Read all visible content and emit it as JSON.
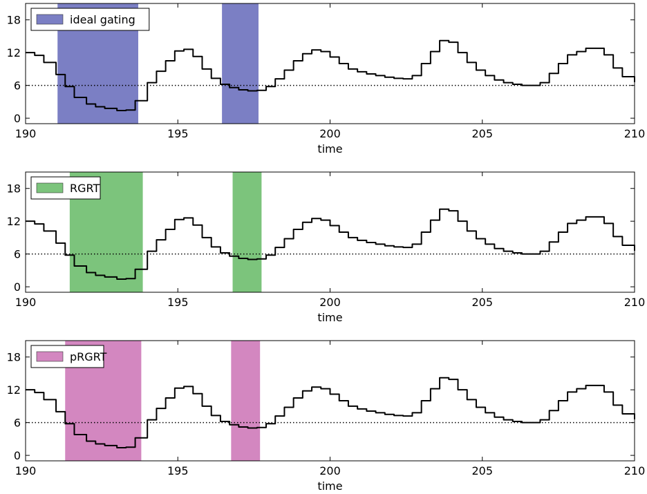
{
  "chart_data": [
    {
      "type": "line",
      "xlabel": "time",
      "xlim": [
        190,
        210
      ],
      "ylim": [
        -1,
        21
      ],
      "xticks": [
        190,
        195,
        200,
        205,
        210
      ],
      "yticks": [
        0,
        6,
        12,
        18
      ],
      "threshold": 6,
      "band_label": "ideal gating",
      "band_color": "#7b7fc4",
      "bands": [
        [
          191.05,
          193.7
        ],
        [
          196.45,
          197.65
        ]
      ],
      "x": [
        190,
        190.3,
        190.6,
        191,
        191.3,
        191.6,
        192,
        192.3,
        192.6,
        193,
        193.3,
        193.6,
        194,
        194.3,
        194.6,
        194.9,
        195.2,
        195.5,
        195.8,
        196.1,
        196.4,
        196.7,
        197.0,
        197.3,
        197.6,
        197.9,
        198.2,
        198.5,
        198.8,
        199.1,
        199.4,
        199.7,
        200.0,
        200.3,
        200.6,
        200.9,
        201.2,
        201.5,
        201.8,
        202.1,
        202.4,
        202.7,
        203.0,
        203.3,
        203.6,
        203.9,
        204.2,
        204.5,
        204.8,
        205.1,
        205.4,
        205.7,
        206.0,
        206.3,
        206.6,
        206.9,
        207.2,
        207.5,
        207.8,
        208.1,
        208.4,
        208.7,
        209.0,
        209.3,
        209.6,
        210
      ],
      "y": [
        12,
        11.5,
        10.2,
        8,
        5.8,
        3.8,
        2.6,
        2.1,
        1.8,
        1.4,
        1.5,
        3.2,
        6.5,
        8.6,
        10.5,
        12.3,
        12.6,
        11.3,
        9,
        7.3,
        6.2,
        5.6,
        5.2,
        5.0,
        5.1,
        5.8,
        7.2,
        8.8,
        10.5,
        11.8,
        12.5,
        12.2,
        11.2,
        10.0,
        9.0,
        8.5,
        8.1,
        7.8,
        7.5,
        7.3,
        7.2,
        7.8,
        10.0,
        12.2,
        14.2,
        13.9,
        12.0,
        10.2,
        8.8,
        7.8,
        7.0,
        6.5,
        6.2,
        6.0,
        6.0,
        6.5,
        8.2,
        10.0,
        11.6,
        12.2,
        12.8,
        12.8,
        11.6,
        9.2,
        7.6,
        6.6
      ]
    },
    {
      "type": "line",
      "xlabel": "time",
      "xlim": [
        190,
        210
      ],
      "ylim": [
        -1,
        21
      ],
      "xticks": [
        190,
        195,
        200,
        205,
        210
      ],
      "yticks": [
        0,
        6,
        12,
        18
      ],
      "threshold": 6,
      "band_label": "RGRT",
      "band_color": "#7cc47c",
      "bands": [
        [
          191.45,
          193.85
        ],
        [
          196.8,
          197.75
        ]
      ],
      "x": [
        190,
        190.3,
        190.6,
        191,
        191.3,
        191.6,
        192,
        192.3,
        192.6,
        193,
        193.3,
        193.6,
        194,
        194.3,
        194.6,
        194.9,
        195.2,
        195.5,
        195.8,
        196.1,
        196.4,
        196.7,
        197.0,
        197.3,
        197.6,
        197.9,
        198.2,
        198.5,
        198.8,
        199.1,
        199.4,
        199.7,
        200.0,
        200.3,
        200.6,
        200.9,
        201.2,
        201.5,
        201.8,
        202.1,
        202.4,
        202.7,
        203.0,
        203.3,
        203.6,
        203.9,
        204.2,
        204.5,
        204.8,
        205.1,
        205.4,
        205.7,
        206.0,
        206.3,
        206.6,
        206.9,
        207.2,
        207.5,
        207.8,
        208.1,
        208.4,
        208.7,
        209.0,
        209.3,
        209.6,
        210
      ],
      "y": [
        12,
        11.5,
        10.2,
        8,
        5.8,
        3.8,
        2.6,
        2.1,
        1.8,
        1.4,
        1.5,
        3.2,
        6.5,
        8.6,
        10.5,
        12.3,
        12.6,
        11.3,
        9,
        7.3,
        6.2,
        5.6,
        5.2,
        5.0,
        5.1,
        5.8,
        7.2,
        8.8,
        10.5,
        11.8,
        12.5,
        12.2,
        11.2,
        10.0,
        9.0,
        8.5,
        8.1,
        7.8,
        7.5,
        7.3,
        7.2,
        7.8,
        10.0,
        12.2,
        14.2,
        13.9,
        12.0,
        10.2,
        8.8,
        7.8,
        7.0,
        6.5,
        6.2,
        6.0,
        6.0,
        6.5,
        8.2,
        10.0,
        11.6,
        12.2,
        12.8,
        12.8,
        11.6,
        9.2,
        7.6,
        6.6
      ]
    },
    {
      "type": "line",
      "xlabel": "time",
      "xlim": [
        190,
        210
      ],
      "ylim": [
        -1,
        21
      ],
      "xticks": [
        190,
        195,
        200,
        205,
        210
      ],
      "yticks": [
        0,
        6,
        12,
        18
      ],
      "threshold": 6,
      "band_label": "pRGRT",
      "band_color": "#d387c0",
      "bands": [
        [
          191.3,
          193.8
        ],
        [
          196.75,
          197.7
        ]
      ],
      "x": [
        190,
        190.3,
        190.6,
        191,
        191.3,
        191.6,
        192,
        192.3,
        192.6,
        193,
        193.3,
        193.6,
        194,
        194.3,
        194.6,
        194.9,
        195.2,
        195.5,
        195.8,
        196.1,
        196.4,
        196.7,
        197.0,
        197.3,
        197.6,
        197.9,
        198.2,
        198.5,
        198.8,
        199.1,
        199.4,
        199.7,
        200.0,
        200.3,
        200.6,
        200.9,
        201.2,
        201.5,
        201.8,
        202.1,
        202.4,
        202.7,
        203.0,
        203.3,
        203.6,
        203.9,
        204.2,
        204.5,
        204.8,
        205.1,
        205.4,
        205.7,
        206.0,
        206.3,
        206.6,
        206.9,
        207.2,
        207.5,
        207.8,
        208.1,
        208.4,
        208.7,
        209.0,
        209.3,
        209.6,
        210
      ],
      "y": [
        12,
        11.5,
        10.2,
        8,
        5.8,
        3.8,
        2.6,
        2.1,
        1.8,
        1.4,
        1.5,
        3.2,
        6.5,
        8.6,
        10.5,
        12.3,
        12.6,
        11.3,
        9,
        7.3,
        6.2,
        5.6,
        5.2,
        5.0,
        5.1,
        5.8,
        7.2,
        8.8,
        10.5,
        11.8,
        12.5,
        12.2,
        11.2,
        10.0,
        9.0,
        8.5,
        8.1,
        7.8,
        7.5,
        7.3,
        7.2,
        7.8,
        10.0,
        12.2,
        14.2,
        13.9,
        12.0,
        10.2,
        8.8,
        7.8,
        7.0,
        6.5,
        6.2,
        6.0,
        6.0,
        6.5,
        8.2,
        10.0,
        11.6,
        12.2,
        12.8,
        12.8,
        11.6,
        9.2,
        7.6,
        6.6
      ]
    }
  ]
}
